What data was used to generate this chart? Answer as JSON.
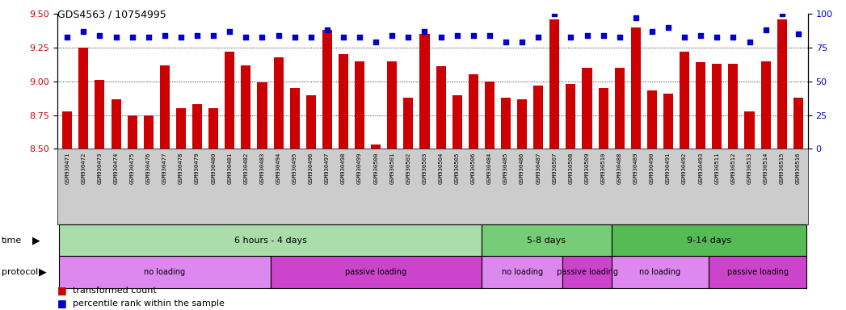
{
  "title": "GDS4563 / 10754995",
  "samples": [
    "GSM930471",
    "GSM930472",
    "GSM930473",
    "GSM930474",
    "GSM930475",
    "GSM930476",
    "GSM930477",
    "GSM930478",
    "GSM930479",
    "GSM930480",
    "GSM930481",
    "GSM930482",
    "GSM930483",
    "GSM930494",
    "GSM930495",
    "GSM930496",
    "GSM930497",
    "GSM930498",
    "GSM930499",
    "GSM930500",
    "GSM930501",
    "GSM930502",
    "GSM930503",
    "GSM930504",
    "GSM930505",
    "GSM930506",
    "GSM930484",
    "GSM930485",
    "GSM930486",
    "GSM930487",
    "GSM930507",
    "GSM930508",
    "GSM930509",
    "GSM930510",
    "GSM930488",
    "GSM930489",
    "GSM930490",
    "GSM930491",
    "GSM930492",
    "GSM930493",
    "GSM930511",
    "GSM930512",
    "GSM930513",
    "GSM930514",
    "GSM930515",
    "GSM930516"
  ],
  "bar_values": [
    8.78,
    9.25,
    9.01,
    8.87,
    8.75,
    8.75,
    9.12,
    8.8,
    8.83,
    8.8,
    9.22,
    9.12,
    8.99,
    9.18,
    8.95,
    8.9,
    9.38,
    9.2,
    9.15,
    8.53,
    9.15,
    8.88,
    9.35,
    9.11,
    8.9,
    9.05,
    9.0,
    8.88,
    8.87,
    8.97,
    9.46,
    8.98,
    9.1,
    8.95,
    9.1,
    9.4,
    8.93,
    8.91,
    9.22,
    9.14,
    9.13,
    9.13,
    8.78,
    9.15,
    9.46,
    8.88
  ],
  "percentile_values": [
    83,
    87,
    84,
    83,
    83,
    83,
    84,
    83,
    84,
    84,
    87,
    83,
    83,
    84,
    83,
    83,
    88,
    83,
    83,
    79,
    84,
    83,
    87,
    83,
    84,
    84,
    84,
    79,
    79,
    83,
    100,
    83,
    84,
    84,
    83,
    97,
    87,
    90,
    83,
    84,
    83,
    83,
    79,
    88,
    100,
    85
  ],
  "bar_color": "#CC0000",
  "dot_color": "#0000CC",
  "ylim_left": [
    8.5,
    9.5
  ],
  "ylim_right": [
    0,
    100
  ],
  "yticks_left": [
    8.5,
    8.75,
    9.0,
    9.25,
    9.5
  ],
  "yticks_right": [
    0,
    25,
    50,
    75,
    100
  ],
  "grid_values": [
    8.75,
    9.0,
    9.25
  ],
  "time_groups": [
    {
      "label": "6 hours - 4 days",
      "start": 0,
      "end": 25,
      "color": "#AADDAA"
    },
    {
      "label": "5-8 days",
      "start": 26,
      "end": 33,
      "color": "#77CC77"
    },
    {
      "label": "9-14 days",
      "start": 34,
      "end": 45,
      "color": "#55BB55"
    }
  ],
  "protocol_groups": [
    {
      "label": "no loading",
      "start": 0,
      "end": 12,
      "color": "#DD88EE"
    },
    {
      "label": "passive loading",
      "start": 13,
      "end": 25,
      "color": "#CC44CC"
    },
    {
      "label": "no loading",
      "start": 26,
      "end": 30,
      "color": "#DD88EE"
    },
    {
      "label": "passive loading",
      "start": 31,
      "end": 33,
      "color": "#CC44CC"
    },
    {
      "label": "no loading",
      "start": 34,
      "end": 39,
      "color": "#DD88EE"
    },
    {
      "label": "passive loading",
      "start": 40,
      "end": 45,
      "color": "#CC44CC"
    }
  ],
  "xtick_bg": "#CCCCCC",
  "chart_bg": "#FFFFFF",
  "fig_bg": "#FFFFFF"
}
